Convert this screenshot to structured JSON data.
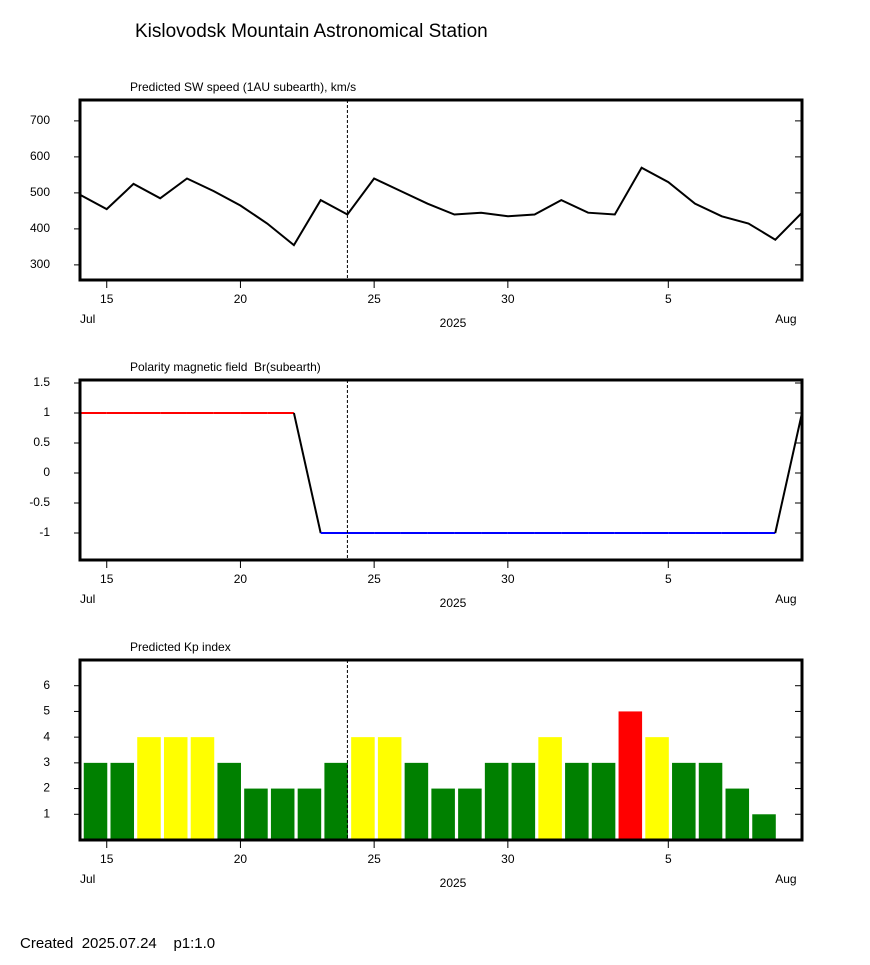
{
  "title": "Kislovodsk Mountain Astronomical Station",
  "footer": "Created  2025.07.24    p1:1.0",
  "chart_data": [
    {
      "type": "line",
      "title": "Predicted SW speed (1AU subearth), km/s",
      "x": [
        "2025-07-14",
        "2025-07-15",
        "2025-07-16",
        "2025-07-17",
        "2025-07-18",
        "2025-07-19",
        "2025-07-20",
        "2025-07-21",
        "2025-07-22",
        "2025-07-23",
        "2025-07-24",
        "2025-07-25",
        "2025-07-26",
        "2025-07-27",
        "2025-07-28",
        "2025-07-29",
        "2025-07-30",
        "2025-07-31",
        "2025-08-01",
        "2025-08-02",
        "2025-08-03",
        "2025-08-04",
        "2025-08-05",
        "2025-08-06",
        "2025-08-07",
        "2025-08-08",
        "2025-08-09",
        "2025-08-10"
      ],
      "series": [
        {
          "color": "#000000",
          "values": [
            495,
            455,
            525,
            485,
            540,
            505,
            465,
            415,
            355,
            480,
            440,
            540,
            505,
            470,
            440,
            445,
            435,
            440,
            480,
            445,
            440,
            570,
            530,
            470,
            435,
            415,
            370,
            445
          ]
        }
      ],
      "xlim": [
        "2025-07-14",
        "2025-08-10"
      ],
      "xticks": [
        {
          "value": "2025-07-15",
          "label": "15"
        },
        {
          "value": "2025-07-20",
          "label": "20"
        },
        {
          "value": "2025-07-25",
          "label": "25"
        },
        {
          "value": "2025-07-30",
          "label": "30"
        },
        {
          "value": "2025-08-05",
          "label": "5"
        }
      ],
      "month_labels": [
        {
          "value": "2025-07-14",
          "label": "Jul"
        },
        {
          "value": "2025-08-09",
          "label": "Aug"
        }
      ],
      "xlabel": "2025",
      "current_date": "2025-07-24",
      "ylim": [
        258,
        758
      ],
      "yticks": [
        300,
        400,
        500,
        600,
        700
      ]
    },
    {
      "type": "line",
      "title": "Polarity magnetic field  Br(subearth)",
      "x": [
        "2025-07-14",
        "2025-07-15",
        "2025-07-16",
        "2025-07-17",
        "2025-07-18",
        "2025-07-19",
        "2025-07-20",
        "2025-07-21",
        "2025-07-22",
        "2025-07-23",
        "2025-07-24",
        "2025-07-25",
        "2025-07-26",
        "2025-07-27",
        "2025-07-28",
        "2025-07-29",
        "2025-07-30",
        "2025-07-31",
        "2025-08-01",
        "2025-08-02",
        "2025-08-03",
        "2025-08-04",
        "2025-08-05",
        "2025-08-06",
        "2025-08-07",
        "2025-08-08",
        "2025-08-09",
        "2025-08-10"
      ],
      "series": [
        {
          "color": "#000000",
          "values": [
            1,
            1,
            1,
            1,
            1,
            1,
            1,
            1,
            1,
            -1,
            -1,
            -1,
            -1,
            -1,
            -1,
            -1,
            -1,
            -1,
            -1,
            -1,
            -1,
            -1,
            -1,
            -1,
            -1,
            -1,
            -1,
            1
          ]
        }
      ],
      "positive_color": "#ff0000",
      "negative_color": "#0000ff",
      "xlim": [
        "2025-07-14",
        "2025-08-10"
      ],
      "xticks": [
        {
          "value": "2025-07-15",
          "label": "15"
        },
        {
          "value": "2025-07-20",
          "label": "20"
        },
        {
          "value": "2025-07-25",
          "label": "25"
        },
        {
          "value": "2025-07-30",
          "label": "30"
        },
        {
          "value": "2025-08-05",
          "label": "5"
        }
      ],
      "month_labels": [
        {
          "value": "2025-07-14",
          "label": "Jul"
        },
        {
          "value": "2025-08-09",
          "label": "Aug"
        }
      ],
      "xlabel": "2025",
      "current_date": "2025-07-24",
      "ylim": [
        -1.45,
        1.55
      ],
      "yticks": [
        1.5,
        1,
        0.5,
        0,
        -0.5,
        -1
      ]
    },
    {
      "type": "bar",
      "title": "Predicted Kp index",
      "categories": [
        "2025-07-14",
        "2025-07-15",
        "2025-07-16",
        "2025-07-17",
        "2025-07-18",
        "2025-07-19",
        "2025-07-20",
        "2025-07-21",
        "2025-07-22",
        "2025-07-23",
        "2025-07-24",
        "2025-07-25",
        "2025-07-26",
        "2025-07-27",
        "2025-07-28",
        "2025-07-29",
        "2025-07-30",
        "2025-07-31",
        "2025-08-01",
        "2025-08-02",
        "2025-08-03",
        "2025-08-04",
        "2025-08-05",
        "2025-08-06",
        "2025-08-07",
        "2025-08-08"
      ],
      "values": [
        3,
        3,
        4,
        4,
        4,
        3,
        2,
        2,
        2,
        3,
        4,
        4,
        3,
        2,
        2,
        3,
        3,
        4,
        3,
        3,
        5,
        4,
        3,
        3,
        2,
        1
      ],
      "colors": [
        "#008000",
        "#008000",
        "#ffff00",
        "#ffff00",
        "#ffff00",
        "#008000",
        "#008000",
        "#008000",
        "#008000",
        "#008000",
        "#ffff00",
        "#ffff00",
        "#008000",
        "#008000",
        "#008000",
        "#008000",
        "#008000",
        "#ffff00",
        "#008000",
        "#008000",
        "#ff0000",
        "#ffff00",
        "#008000",
        "#008000",
        "#008000",
        "#008000"
      ],
      "xlim": [
        "2025-07-14",
        "2025-08-10"
      ],
      "xticks": [
        {
          "value": "2025-07-15",
          "label": "15"
        },
        {
          "value": "2025-07-20",
          "label": "20"
        },
        {
          "value": "2025-07-25",
          "label": "25"
        },
        {
          "value": "2025-07-30",
          "label": "30"
        },
        {
          "value": "2025-08-05",
          "label": "5"
        }
      ],
      "month_labels": [
        {
          "value": "2025-07-14",
          "label": "Jul"
        },
        {
          "value": "2025-08-09",
          "label": "Aug"
        }
      ],
      "xlabel": "2025",
      "current_date": "2025-07-24",
      "ylim": [
        0,
        7
      ],
      "yticks": [
        1,
        2,
        3,
        4,
        5,
        6
      ]
    }
  ]
}
